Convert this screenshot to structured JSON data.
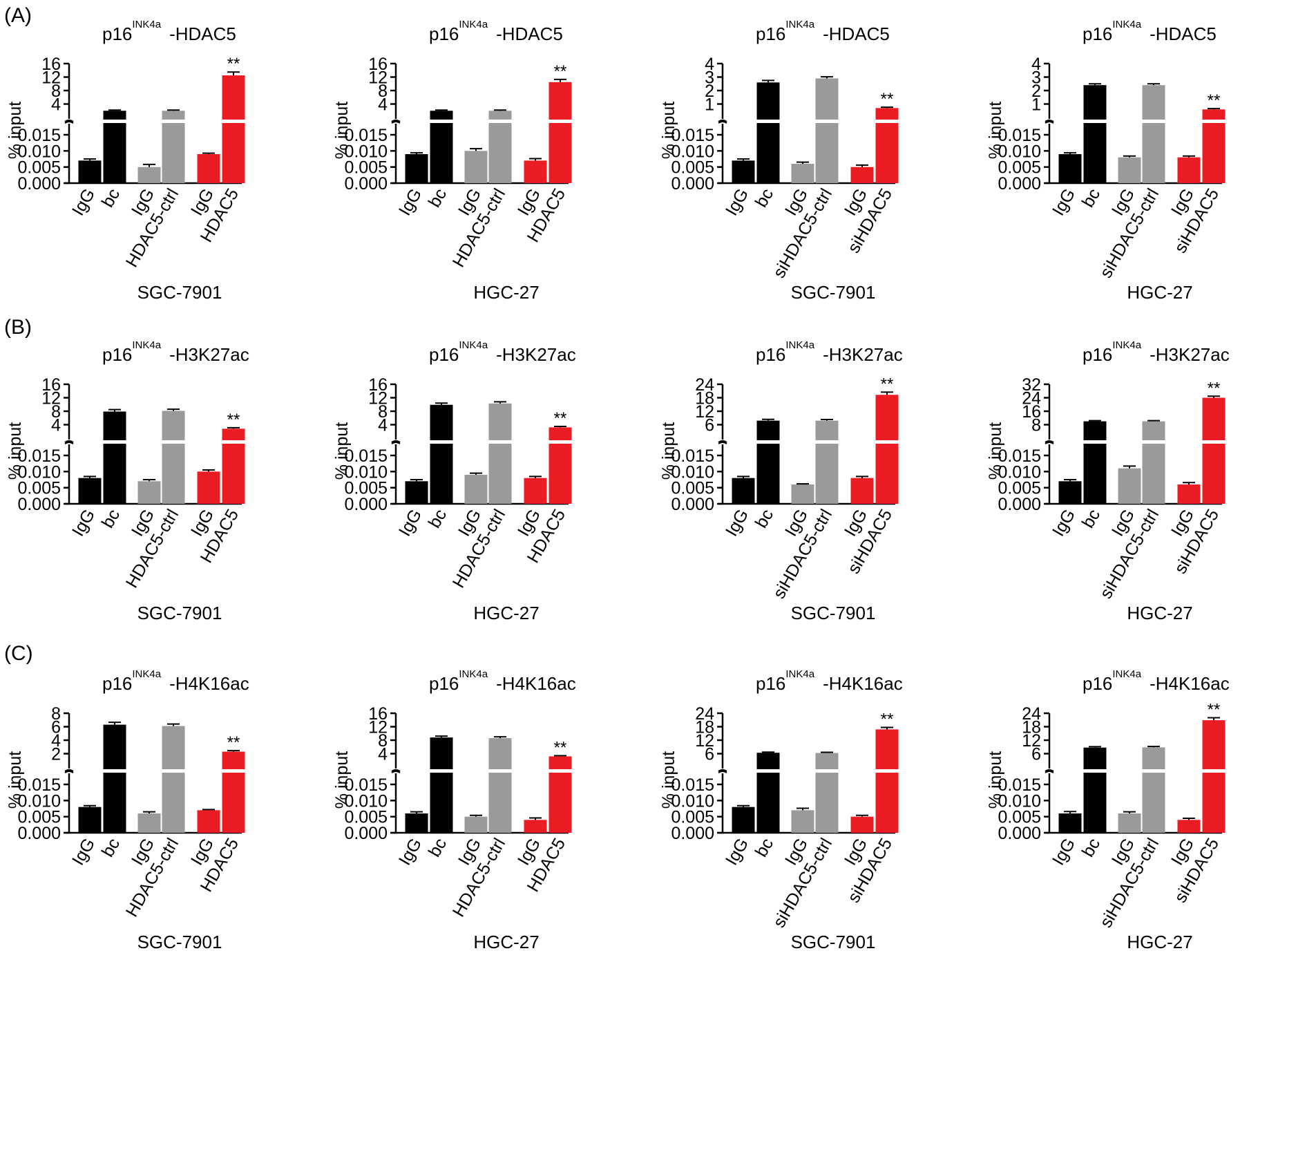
{
  "colors": {
    "black": "#000000",
    "gray": "#9a9a9c",
    "red": "#ec1c24"
  },
  "panel_labels": [
    "(A)",
    "(B)",
    "(C)"
  ],
  "chart_data": [
    {
      "type": "bar",
      "row": 0,
      "col": 0,
      "panel": "(A)",
      "title": {
        "main": "p16",
        "sup": "INK4a",
        "suffix": "-HDAC5"
      },
      "ylabel": "% input",
      "xlabel": "SGC-7901",
      "categories": [
        "IgG",
        "bc",
        "IgG",
        "HDAC5-ctrl",
        "IgG",
        "HDAC5"
      ],
      "values": [
        0.007,
        2,
        0.005,
        2,
        0.009,
        12.5
      ],
      "errors": [
        0.0005,
        0.2,
        0.0008,
        0.2,
        0.0003,
        1.0
      ],
      "bar_colors": [
        "black",
        "black",
        "gray",
        "gray",
        "red",
        "red"
      ],
      "upper_axis": {
        "ylim": [
          0,
          16
        ],
        "ticks": [
          "16",
          "12",
          "8",
          "4"
        ],
        "tick_values": [
          16,
          12,
          8,
          4
        ]
      },
      "lower_axis": {
        "ylim": [
          0,
          0.018
        ],
        "ticks": [
          "0.015",
          "0.010",
          "0.005",
          "0.000"
        ],
        "tick_values": [
          0.015,
          0.01,
          0.005,
          0
        ]
      },
      "significance": [
        {
          "index": 5,
          "label": "**"
        }
      ]
    },
    {
      "type": "bar",
      "row": 0,
      "col": 1,
      "title": {
        "main": "p16",
        "sup": "INK4a",
        "suffix": "-HDAC5"
      },
      "ylabel": "% input",
      "xlabel": "HGC-27",
      "categories": [
        "IgG",
        "bc",
        "IgG",
        "HDAC5-ctrl",
        "IgG",
        "HDAC5"
      ],
      "values": [
        0.009,
        2,
        0.01,
        2,
        0.007,
        10.5
      ],
      "errors": [
        0.0004,
        0.2,
        0.0007,
        0.2,
        0.0006,
        0.8
      ],
      "bar_colors": [
        "black",
        "black",
        "gray",
        "gray",
        "red",
        "red"
      ],
      "upper_axis": {
        "ylim": [
          0,
          16
        ],
        "ticks": [
          "16",
          "12",
          "8",
          "4"
        ],
        "tick_values": [
          16,
          12,
          8,
          4
        ]
      },
      "lower_axis": {
        "ylim": [
          0,
          0.018
        ],
        "ticks": [
          "0.015",
          "0.010",
          "0.005",
          "0.000"
        ],
        "tick_values": [
          0.015,
          0.01,
          0.005,
          0
        ]
      },
      "significance": [
        {
          "index": 5,
          "label": "**"
        }
      ]
    },
    {
      "type": "bar",
      "row": 0,
      "col": 2,
      "title": {
        "main": "p16",
        "sup": "INK4a",
        "suffix": "-HDAC5"
      },
      "ylabel": "% input",
      "xlabel": "SGC-7901",
      "categories": [
        "IgG",
        "bc",
        "IgG",
        "siHDAC5-ctrl",
        "IgG",
        "siHDAC5"
      ],
      "values": [
        0.007,
        2.6,
        0.006,
        2.9,
        0.005,
        0.7
      ],
      "errors": [
        0.0005,
        0.15,
        0.0005,
        0.12,
        0.0006,
        0.06
      ],
      "bar_colors": [
        "black",
        "black",
        "gray",
        "gray",
        "red",
        "red"
      ],
      "upper_axis": {
        "ylim": [
          0,
          4
        ],
        "ticks": [
          "4",
          "3",
          "2",
          "1"
        ],
        "tick_values": [
          4,
          3,
          2,
          1
        ]
      },
      "lower_axis": {
        "ylim": [
          0,
          0.018
        ],
        "ticks": [
          "0.015",
          "0.010",
          "0.005",
          "0.000"
        ],
        "tick_values": [
          0.015,
          0.01,
          0.005,
          0
        ]
      },
      "significance": [
        {
          "index": 5,
          "label": "**"
        }
      ]
    },
    {
      "type": "bar",
      "row": 0,
      "col": 3,
      "title": {
        "main": "p16",
        "sup": "INK4a",
        "suffix": "-HDAC5"
      },
      "ylabel": "% input",
      "xlabel": "HGC-27",
      "categories": [
        "IgG",
        "bc",
        "IgG",
        "siHDAC5-ctrl",
        "IgG",
        "siHDAC5"
      ],
      "values": [
        0.009,
        2.4,
        0.008,
        2.4,
        0.008,
        0.6
      ],
      "errors": [
        0.0004,
        0.1,
        0.0004,
        0.1,
        0.0004,
        0.06
      ],
      "bar_colors": [
        "black",
        "black",
        "gray",
        "gray",
        "red",
        "red"
      ],
      "upper_axis": {
        "ylim": [
          0,
          4
        ],
        "ticks": [
          "4",
          "3",
          "2",
          "1"
        ],
        "tick_values": [
          4,
          3,
          2,
          1
        ]
      },
      "lower_axis": {
        "ylim": [
          0,
          0.018
        ],
        "ticks": [
          "0.015",
          "0.010",
          "0.005",
          "0.000"
        ],
        "tick_values": [
          0.015,
          0.01,
          0.005,
          0
        ]
      },
      "significance": [
        {
          "index": 5,
          "label": "**"
        }
      ]
    },
    {
      "type": "bar",
      "row": 1,
      "col": 0,
      "panel": "(B)",
      "title": {
        "main": "p16",
        "sup": "INK4a",
        "suffix": "-H3K27ac"
      },
      "ylabel": "% input",
      "xlabel": "SGC-7901",
      "categories": [
        "IgG",
        "bc",
        "IgG",
        "HDAC5-ctrl",
        "IgG",
        "HDAC5"
      ],
      "values": [
        0.008,
        7.9,
        0.007,
        8.1,
        0.01,
        2.8
      ],
      "errors": [
        0.0005,
        0.6,
        0.0005,
        0.5,
        0.0005,
        0.3
      ],
      "bar_colors": [
        "black",
        "black",
        "gray",
        "gray",
        "red",
        "red"
      ],
      "upper_axis": {
        "ylim": [
          0,
          16
        ],
        "ticks": [
          "16",
          "12",
          "8",
          "4"
        ],
        "tick_values": [
          16,
          12,
          8,
          4
        ]
      },
      "lower_axis": {
        "ylim": [
          0,
          0.018
        ],
        "ticks": [
          "0.015",
          "0.010",
          "0.005",
          "0.000"
        ],
        "tick_values": [
          0.015,
          0.01,
          0.005,
          0
        ]
      },
      "significance": [
        {
          "index": 5,
          "label": "**"
        }
      ]
    },
    {
      "type": "bar",
      "row": 1,
      "col": 1,
      "title": {
        "main": "p16",
        "sup": "INK4a",
        "suffix": "-H3K27ac"
      },
      "ylabel": "% input",
      "xlabel": "HGC-27",
      "categories": [
        "IgG",
        "bc",
        "IgG",
        "HDAC5-ctrl",
        "IgG",
        "HDAC5"
      ],
      "values": [
        0.007,
        9.9,
        0.009,
        10.3,
        0.008,
        3.2
      ],
      "errors": [
        0.0005,
        0.5,
        0.0005,
        0.5,
        0.0005,
        0.3
      ],
      "bar_colors": [
        "black",
        "black",
        "gray",
        "gray",
        "red",
        "red"
      ],
      "upper_axis": {
        "ylim": [
          0,
          16
        ],
        "ticks": [
          "16",
          "12",
          "8",
          "4"
        ],
        "tick_values": [
          16,
          12,
          8,
          4
        ]
      },
      "lower_axis": {
        "ylim": [
          0,
          0.018
        ],
        "ticks": [
          "0.015",
          "0.010",
          "0.005",
          "0.000"
        ],
        "tick_values": [
          0.015,
          0.01,
          0.005,
          0
        ]
      },
      "significance": [
        {
          "index": 5,
          "label": "**"
        }
      ]
    },
    {
      "type": "bar",
      "row": 1,
      "col": 2,
      "title": {
        "main": "p16",
        "sup": "INK4a",
        "suffix": "-H3K27ac"
      },
      "ylabel": "% input",
      "xlabel": "SGC-7901",
      "categories": [
        "IgG",
        "bc",
        "IgG",
        "siHDAC5-ctrl",
        "IgG",
        "siHDAC5"
      ],
      "values": [
        0.008,
        7.8,
        0.006,
        7.8,
        0.008,
        19.3
      ],
      "errors": [
        0.0005,
        0.6,
        0.0002,
        0.5,
        0.0005,
        1.2
      ],
      "bar_colors": [
        "black",
        "black",
        "gray",
        "gray",
        "red",
        "red"
      ],
      "upper_axis": {
        "ylim": [
          0,
          24
        ],
        "ticks": [
          "24",
          "18",
          "12",
          "6"
        ],
        "tick_values": [
          24,
          18,
          12,
          6
        ]
      },
      "lower_axis": {
        "ylim": [
          0,
          0.018
        ],
        "ticks": [
          "0.015",
          "0.010",
          "0.005",
          "0.000"
        ],
        "tick_values": [
          0.015,
          0.01,
          0.005,
          0
        ]
      },
      "significance": [
        {
          "index": 5,
          "label": "**"
        }
      ]
    },
    {
      "type": "bar",
      "row": 1,
      "col": 3,
      "title": {
        "main": "p16",
        "sup": "INK4a",
        "suffix": "-H3K27ac"
      },
      "ylabel": "% input",
      "xlabel": "HGC-27",
      "categories": [
        "IgG",
        "bc",
        "IgG",
        "siHDAC5-ctrl",
        "IgG",
        "siHDAC5"
      ],
      "values": [
        0.007,
        10,
        0.011,
        10,
        0.006,
        24
      ],
      "errors": [
        0.0005,
        0.4,
        0.0007,
        0.4,
        0.0006,
        0.9
      ],
      "bar_colors": [
        "black",
        "black",
        "gray",
        "gray",
        "red",
        "red"
      ],
      "upper_axis": {
        "ylim": [
          0,
          32
        ],
        "ticks": [
          "32",
          "24",
          "16",
          "8"
        ],
        "tick_values": [
          32,
          24,
          16,
          8
        ]
      },
      "lower_axis": {
        "ylim": [
          0,
          0.018
        ],
        "ticks": [
          "0.015",
          "0.010",
          "0.005",
          "0.000"
        ],
        "tick_values": [
          0.015,
          0.01,
          0.005,
          0
        ]
      },
      "significance": [
        {
          "index": 5,
          "label": "**"
        }
      ]
    },
    {
      "type": "bar",
      "row": 2,
      "col": 0,
      "panel": "(C)",
      "title": {
        "main": "p16",
        "sup": "INK4a",
        "suffix": "-H4K16ac"
      },
      "ylabel": "% input",
      "xlabel": "SGC-7901",
      "categories": [
        "IgG",
        "bc",
        "IgG",
        "HDAC5-ctrl",
        "IgG",
        "HDAC5"
      ],
      "values": [
        0.008,
        6.3,
        0.006,
        6.1,
        0.007,
        2.3
      ],
      "errors": [
        0.0004,
        0.35,
        0.0005,
        0.3,
        0.0002,
        0.15
      ],
      "bar_colors": [
        "black",
        "black",
        "gray",
        "gray",
        "red",
        "red"
      ],
      "upper_axis": {
        "ylim": [
          0,
          8
        ],
        "ticks": [
          "8",
          "6",
          "4",
          "2"
        ],
        "tick_values": [
          8,
          6,
          4,
          2
        ]
      },
      "lower_axis": {
        "ylim": [
          0,
          0.018
        ],
        "ticks": [
          "0.015",
          "0.010",
          "0.005",
          "0.000"
        ],
        "tick_values": [
          0.015,
          0.01,
          0.005,
          0
        ]
      },
      "significance": [
        {
          "index": 5,
          "label": "**"
        }
      ]
    },
    {
      "type": "bar",
      "row": 2,
      "col": 1,
      "title": {
        "main": "p16",
        "sup": "INK4a",
        "suffix": "-H4K16ac"
      },
      "ylabel": "% input",
      "xlabel": "HGC-27",
      "categories": [
        "IgG",
        "bc",
        "IgG",
        "HDAC5-ctrl",
        "IgG",
        "HDAC5"
      ],
      "values": [
        0.006,
        8.8,
        0.005,
        8.6,
        0.004,
        3.2
      ],
      "errors": [
        0.0005,
        0.4,
        0.0004,
        0.4,
        0.0006,
        0.2
      ],
      "bar_colors": [
        "black",
        "black",
        "gray",
        "gray",
        "red",
        "red"
      ],
      "upper_axis": {
        "ylim": [
          0,
          16
        ],
        "ticks": [
          "16",
          "12",
          "8",
          "4"
        ],
        "tick_values": [
          16,
          12,
          8,
          4
        ]
      },
      "lower_axis": {
        "ylim": [
          0,
          0.018
        ],
        "ticks": [
          "0.015",
          "0.010",
          "0.005",
          "0.000"
        ],
        "tick_values": [
          0.015,
          0.01,
          0.005,
          0
        ]
      },
      "significance": [
        {
          "index": 5,
          "label": "**"
        }
      ]
    },
    {
      "type": "bar",
      "row": 2,
      "col": 2,
      "title": {
        "main": "p16",
        "sup": "INK4a",
        "suffix": "-H4K16ac"
      },
      "ylabel": "% input",
      "xlabel": "SGC-7901",
      "categories": [
        "IgG",
        "bc",
        "IgG",
        "siHDAC5-ctrl",
        "IgG",
        "siHDAC5"
      ],
      "values": [
        0.008,
        6.4,
        0.007,
        6.3,
        0.005,
        16.8
      ],
      "errors": [
        0.0004,
        0.3,
        0.0006,
        0.3,
        0.0004,
        0.9
      ],
      "bar_colors": [
        "black",
        "black",
        "gray",
        "gray",
        "red",
        "red"
      ],
      "upper_axis": {
        "ylim": [
          0,
          24
        ],
        "ticks": [
          "24",
          "18",
          "12",
          "6"
        ],
        "tick_values": [
          24,
          18,
          12,
          6
        ]
      },
      "lower_axis": {
        "ylim": [
          0,
          0.018
        ],
        "ticks": [
          "0.015",
          "0.010",
          "0.005",
          "0.000"
        ],
        "tick_values": [
          0.015,
          0.01,
          0.005,
          0
        ]
      },
      "significance": [
        {
          "index": 5,
          "label": "**"
        }
      ]
    },
    {
      "type": "bar",
      "row": 2,
      "col": 3,
      "title": {
        "main": "p16",
        "sup": "INK4a",
        "suffix": "-H4K16ac"
      },
      "ylabel": "% input",
      "xlabel": "HGC-27",
      "categories": [
        "IgG",
        "bc",
        "IgG",
        "siHDAC5-ctrl",
        "IgG",
        "siHDAC5"
      ],
      "values": [
        0.006,
        8.7,
        0.006,
        8.8,
        0.004,
        20.9
      ],
      "errors": [
        0.0006,
        0.4,
        0.0005,
        0.4,
        0.0005,
        1.1
      ],
      "bar_colors": [
        "black",
        "black",
        "gray",
        "gray",
        "red",
        "red"
      ],
      "upper_axis": {
        "ylim": [
          0,
          24
        ],
        "ticks": [
          "24",
          "18",
          "12",
          "6"
        ],
        "tick_values": [
          24,
          18,
          12,
          6
        ]
      },
      "lower_axis": {
        "ylim": [
          0,
          0.018
        ],
        "ticks": [
          "0.015",
          "0.010",
          "0.005",
          "0.000"
        ],
        "tick_values": [
          0.015,
          0.01,
          0.005,
          0
        ]
      },
      "significance": [
        {
          "index": 5,
          "label": "**"
        }
      ]
    }
  ]
}
